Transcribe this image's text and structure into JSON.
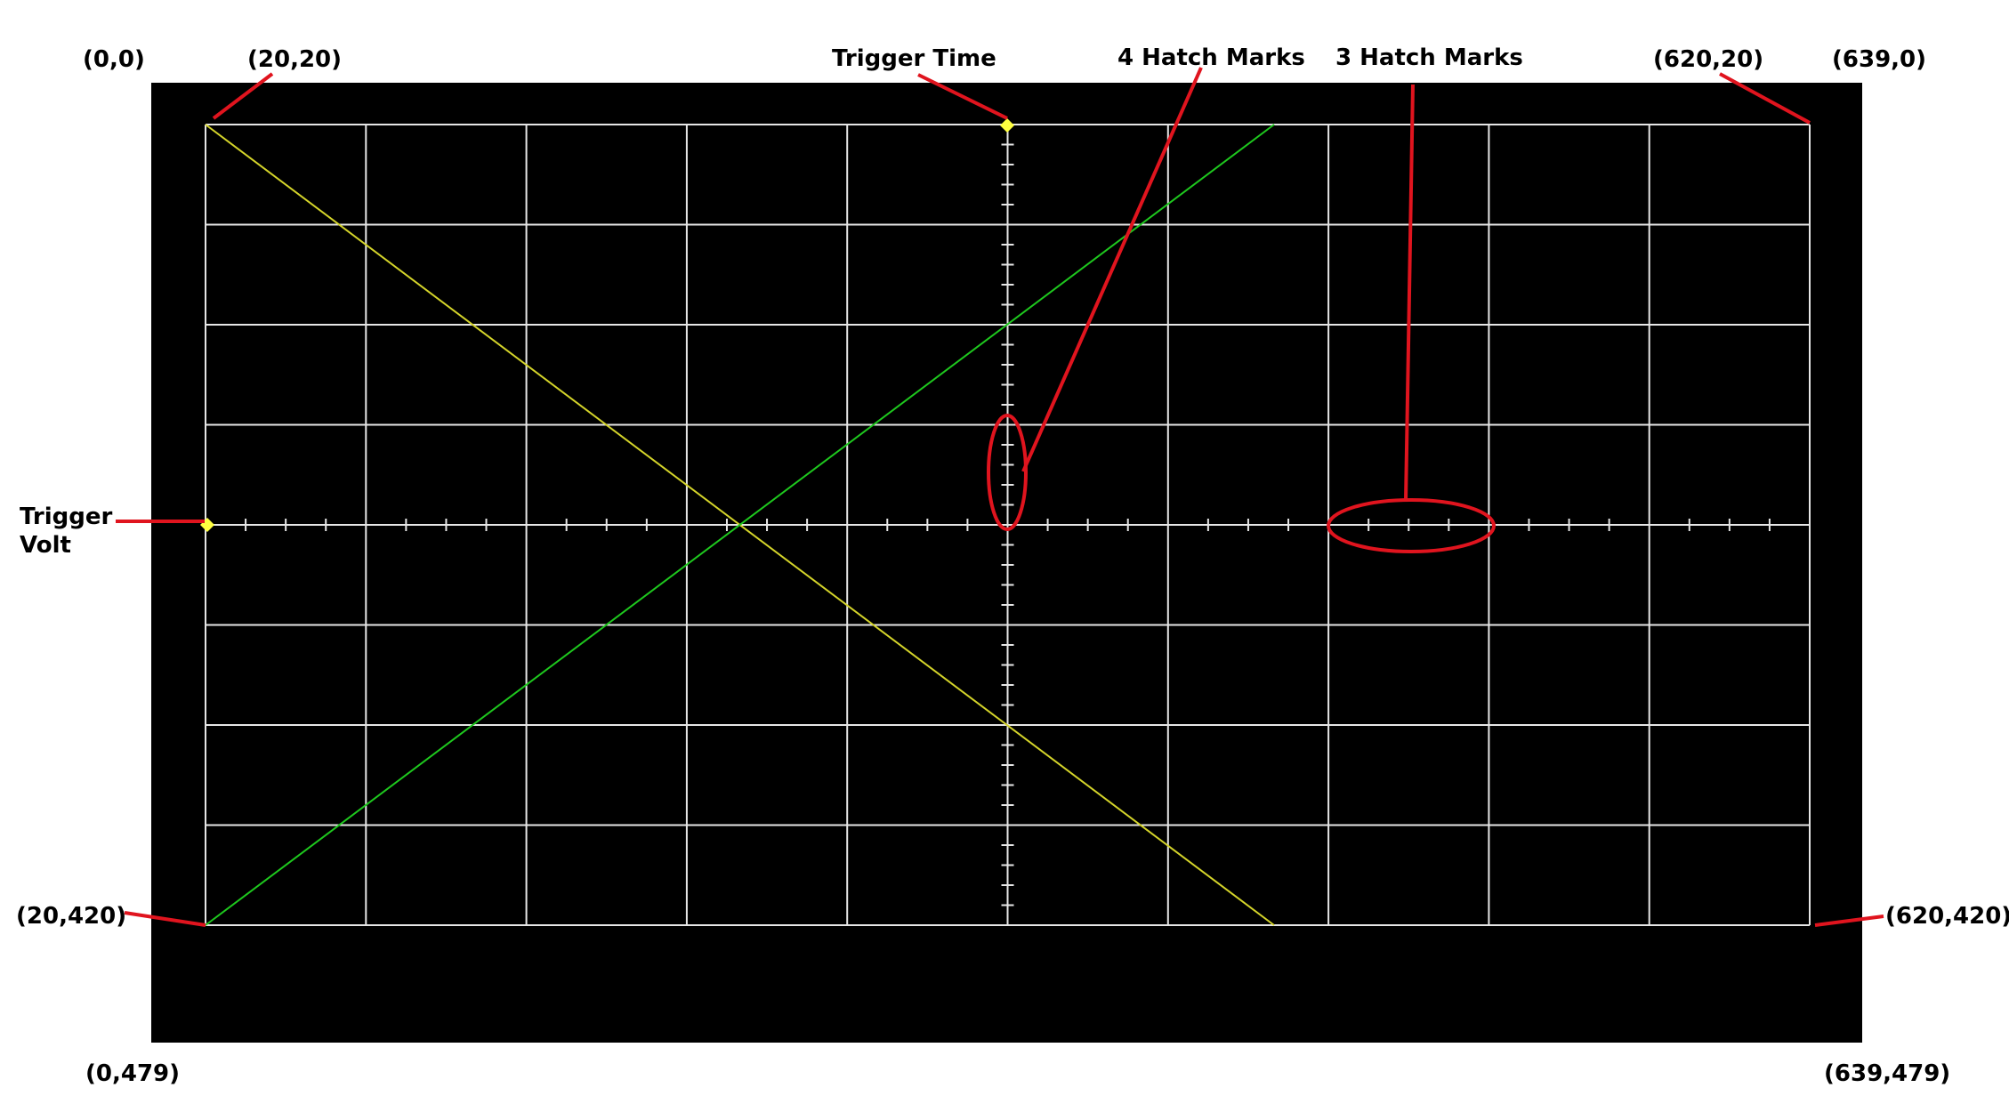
{
  "labels": {
    "origin": "(0,0)",
    "top_left_grid": "(20,20)",
    "trigger_time": "Trigger Time",
    "four_hatch": "4 Hatch Marks",
    "three_hatch": "3 Hatch Marks",
    "top_right_grid": "(620,20)",
    "top_right_screen": "(639,0)",
    "trigger_volt_line1": "Trigger",
    "trigger_volt_line2": "Volt",
    "bottom_left_grid": "(20,420)",
    "bottom_right_grid": "(620,420)",
    "bottom_left_screen": "(0,479)",
    "bottom_right_screen": "(639,479)"
  },
  "grid": {
    "divisions_x": 10,
    "divisions_y": 8,
    "minor_ticks_per_division_x": 3,
    "minor_ticks_per_division_y": 4
  },
  "colors": {
    "screen": "#000000",
    "grid": "#e6e6e6",
    "trace_green": "#1ec81e",
    "trace_yellow": "#d4d42a",
    "marker": "#ffff40",
    "annotation": "#e0141e",
    "label": "#000000"
  }
}
